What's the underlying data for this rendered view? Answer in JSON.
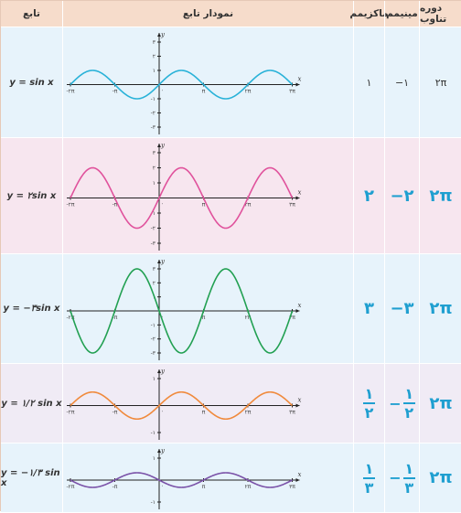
{
  "headers": {
    "function": "تابع",
    "graph": "نمودار تابع",
    "maximum": "ماکزیمم",
    "minimum": "مینیمم",
    "period": "دوره تناوب"
  },
  "rows": [
    {
      "function": "y = sin x",
      "maximum": "۱",
      "minimum": "−۱",
      "period": "۲π",
      "color": "#29b2d8",
      "amplitude": 1,
      "y_ticks": [
        "۳",
        "۲",
        "۱",
        "-۱",
        "-۲",
        "-۳"
      ],
      "y_tick_values": [
        3,
        2,
        1,
        -1,
        -2,
        -3
      ]
    },
    {
      "function": "y = ۲sin x",
      "maximum": "۲",
      "minimum": "−۲",
      "period": "۲π",
      "color": "#e0529c",
      "amplitude": 2,
      "y_ticks": [
        "۳",
        "۲",
        "۱",
        "-۱",
        "-۲",
        "-۳"
      ],
      "y_tick_values": [
        3,
        2,
        1,
        -1,
        -2,
        -3
      ]
    },
    {
      "function": "y = −۳sin x",
      "maximum": "۳",
      "minimum": "−۳",
      "period": "۲π",
      "color": "#22a052",
      "amplitude": -3,
      "y_ticks": [
        "۳",
        "۲",
        "۱",
        "-۱",
        "-۲",
        "-۳"
      ],
      "y_tick_values": [
        3,
        2,
        1,
        -1,
        -2,
        -3
      ]
    },
    {
      "function": "y = ۱/۲ sin x",
      "max_num": "۱",
      "max_den": "۲",
      "min_sign": "−",
      "min_num": "۱",
      "min_den": "۲",
      "period": "۲π",
      "color": "#f08a3c",
      "amplitude": 0.5,
      "y_ticks": [
        "۱",
        "-۱"
      ],
      "y_tick_values": [
        1,
        -1
      ]
    },
    {
      "function": "y = −۱/۳ sin x",
      "max_num": "۱",
      "max_den": "۳",
      "min_sign": "−",
      "min_num": "۱",
      "min_den": "۳",
      "period": "۲π",
      "color": "#7a52a8",
      "amplitude": -0.3333,
      "y_ticks": [
        "۱",
        "-۱"
      ],
      "y_tick_values": [
        1,
        -1
      ]
    }
  ],
  "x_axis_labels": [
    "-۲π",
    "-π",
    "π",
    "۲π",
    "۳π"
  ],
  "x_axis_values": [
    -2,
    -1,
    1,
    2,
    3
  ],
  "origin_label": "۰",
  "axis_names": {
    "x": "x",
    "y": "y"
  },
  "colors": {
    "header_bg": "#f6dccb",
    "row_blue": "#e7f3fb",
    "row_pink": "#f7e6ef",
    "row_purple_light": "#f0ebf5",
    "value_blue": "#1f9fd0"
  }
}
